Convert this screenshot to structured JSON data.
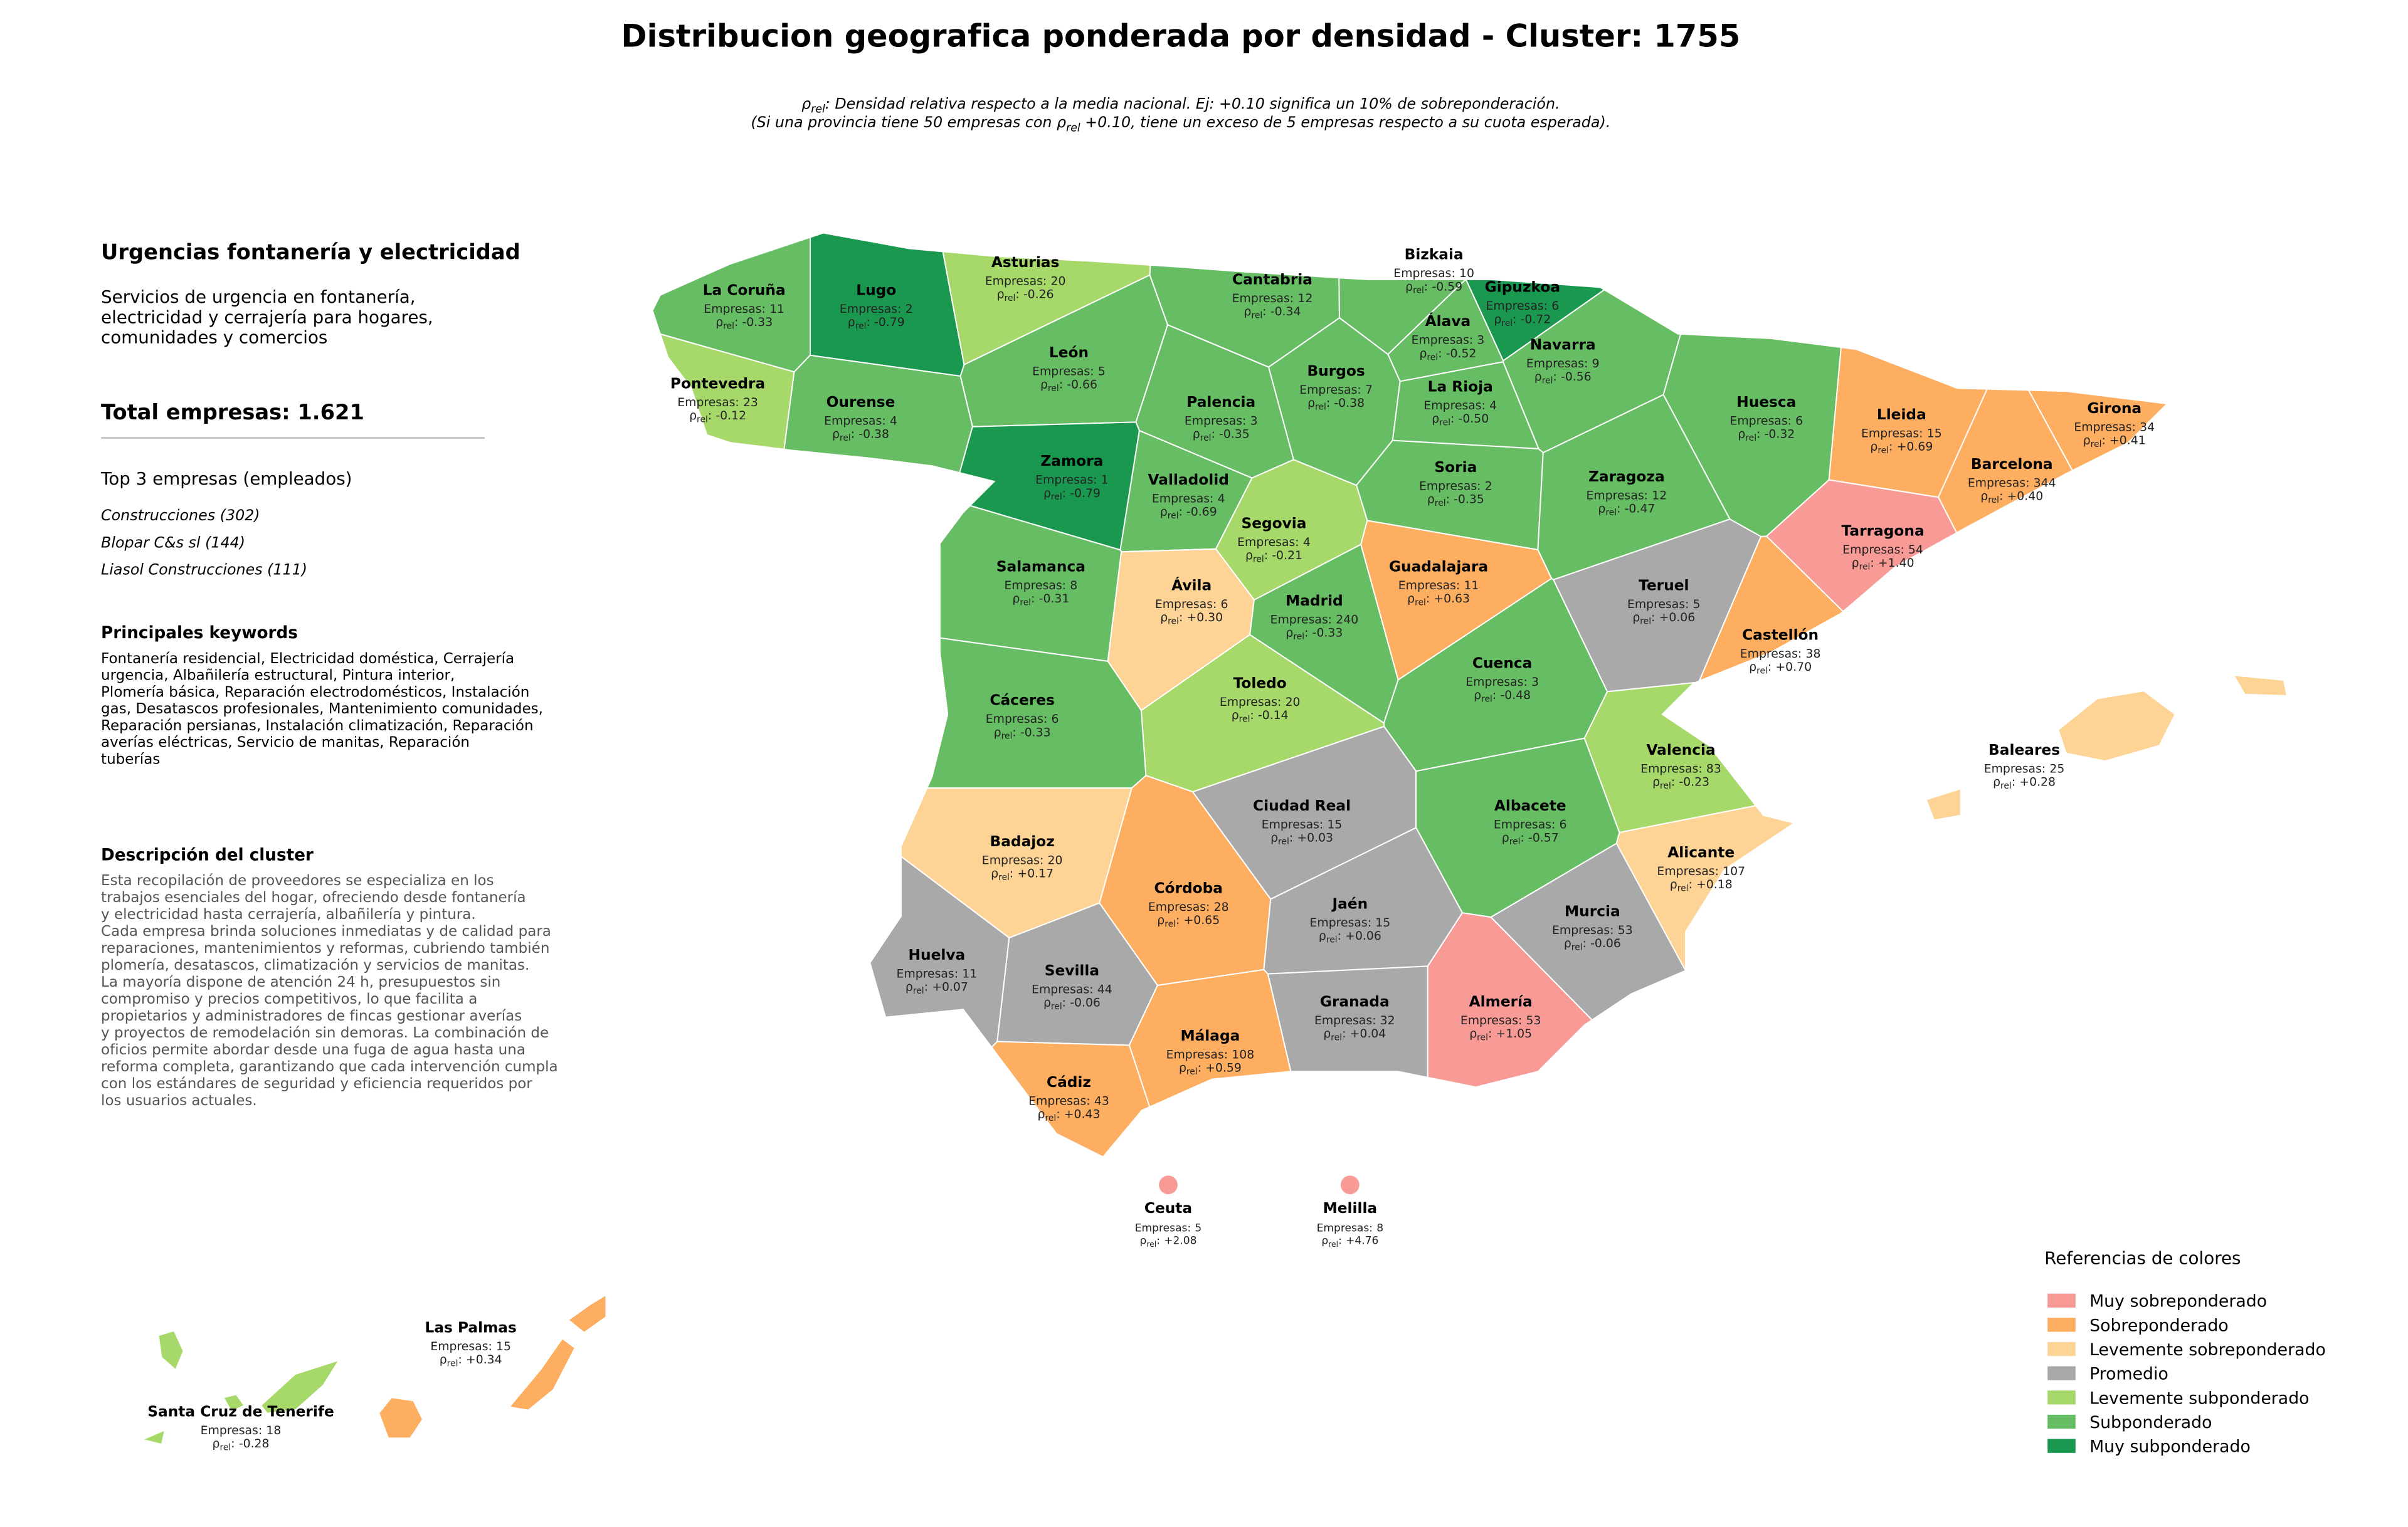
{
  "header": {
    "title": "Distribucion geografica ponderada por densidad - Cluster: 1755",
    "subtitle": [
      {
        "pre": "ρ",
        "sub": "rel",
        "post": ": Densidad relativa respecto a la media nacional. Ej: +0.10 significa un 10% de sobreponderación."
      },
      {
        "pre": "(Si una provincia tiene 50 empresas con ρ",
        "sub": "rel",
        "post": " +0.10, tiene un exceso de 5 empresas respecto a su cuota esperada)."
      }
    ]
  },
  "panel": {
    "title": "Urgencias fontanería y electricidad",
    "description": [
      "Servicios de urgencia en fontanería,",
      "electricidad y cerrajería para hogares,",
      "comunidades y comercios"
    ],
    "total": "Total empresas: 1.621",
    "top_title": "Top 3 empresas (empleados)",
    "top": [
      "Construcciones (302)",
      "Blopar C&s sl (144)",
      "Liasol Construcciones (111)"
    ],
    "keywords_title": "Principales keywords",
    "keywords": [
      "Fontanería residencial, Electricidad doméstica, Cerrajería",
      "urgencia, Albañilería estructural, Pintura interior,",
      "Plomería básica, Reparación electrodomésticos, Instalación",
      "gas, Desatascos profesionales, Mantenimiento comunidades,",
      "Reparación persianas, Instalación climatización, Reparación",
      "averías eléctricas, Servicio de manitas, Reparación",
      "tuberías"
    ],
    "cluster_title": "Descripción del cluster",
    "cluster": [
      "Esta recopilación de proveedores se especializa en los",
      "trabajos esenciales del hogar, ofreciendo desde fontanería",
      "y electricidad hasta cerrajería, albañilería y pintura.",
      "Cada empresa brinda soluciones inmediatas y de calidad para",
      "reparaciones, mantenimientos y reformas, cubriendo también",
      "plomería, desatascos, climatización y servicios de manitas.",
      "La mayoría dispone de atención 24 h, presupuestos sin",
      "compromiso y precios competitivos, lo que facilita a",
      "propietarios y administradores de fincas gestionar averías",
      "y proyectos de remodelación sin demoras. La combinación de",
      "oficios permite abordar desde una fuga de agua hasta una",
      "reforma completa, garantizando que cada intervención cumpla",
      "con los estándares de seguridad y eficiencia requeridos por",
      "los usuarios actuales."
    ]
  },
  "labels": {
    "empresas": "Empresas:",
    "rho": "ρ",
    "rho_sub": "rel",
    "rho_colon": ":"
  },
  "provinces": [
    {
      "name": "La Coruña",
      "empresas": 11,
      "rho": -0.33,
      "rho_label": "-0.33",
      "color": "#66bd63"
    },
    {
      "name": "Lugo",
      "empresas": 2,
      "rho": -0.79,
      "rho_label": "-0.79",
      "color": "#1a9850"
    },
    {
      "name": "Asturias",
      "empresas": 20,
      "rho": -0.26,
      "rho_label": "-0.26",
      "color": "#a6d96a"
    },
    {
      "name": "Cantabria",
      "empresas": 12,
      "rho": -0.34,
      "rho_label": "-0.34",
      "color": "#66bd63"
    },
    {
      "name": "Bizkaia",
      "empresas": 10,
      "rho": -0.59,
      "rho_label": "-0.59",
      "color": "#66bd63"
    },
    {
      "name": "Gipuzkoa",
      "empresas": 6,
      "rho": -0.72,
      "rho_label": "-0.72",
      "color": "#1a9850"
    },
    {
      "name": "Álava",
      "empresas": 3,
      "rho": -0.52,
      "rho_label": "-0.52",
      "color": "#66bd63"
    },
    {
      "name": "Navarra",
      "empresas": 9,
      "rho": -0.56,
      "rho_label": "-0.56",
      "color": "#66bd63"
    },
    {
      "name": "León",
      "empresas": 5,
      "rho": -0.66,
      "rho_label": "-0.66",
      "color": "#66bd63"
    },
    {
      "name": "Pontevedra",
      "empresas": 23,
      "rho": -0.12,
      "rho_label": "-0.12",
      "color": "#a6d96a"
    },
    {
      "name": "Ourense",
      "empresas": 4,
      "rho": -0.38,
      "rho_label": "-0.38",
      "color": "#66bd63"
    },
    {
      "name": "Palencia",
      "empresas": 3,
      "rho": -0.35,
      "rho_label": "-0.35",
      "color": "#66bd63"
    },
    {
      "name": "Burgos",
      "empresas": 7,
      "rho": -0.38,
      "rho_label": "-0.38",
      "color": "#66bd63"
    },
    {
      "name": "La Rioja",
      "empresas": 4,
      "rho": -0.5,
      "rho_label": "-0.50",
      "color": "#66bd63"
    },
    {
      "name": "Huesca",
      "empresas": 6,
      "rho": -0.32,
      "rho_label": "-0.32",
      "color": "#66bd63"
    },
    {
      "name": "Lleida",
      "empresas": 15,
      "rho": 0.69,
      "rho_label": "+0.69",
      "color": "#fdae61"
    },
    {
      "name": "Girona",
      "empresas": 34,
      "rho": 0.41,
      "rho_label": "+0.41",
      "color": "#fdae61"
    },
    {
      "name": "Barcelona",
      "empresas": 344,
      "rho": 0.4,
      "rho_label": "+0.40",
      "color": "#fdae61"
    },
    {
      "name": "Zamora",
      "empresas": 1,
      "rho": -0.79,
      "rho_label": "-0.79",
      "color": "#1a9850"
    },
    {
      "name": "Valladolid",
      "empresas": 4,
      "rho": -0.69,
      "rho_label": "-0.69",
      "color": "#66bd63"
    },
    {
      "name": "Soria",
      "empresas": 2,
      "rho": -0.35,
      "rho_label": "-0.35",
      "color": "#66bd63"
    },
    {
      "name": "Zaragoza",
      "empresas": 12,
      "rho": -0.47,
      "rho_label": "-0.47",
      "color": "#66bd63"
    },
    {
      "name": "Tarragona",
      "empresas": 54,
      "rho": 1.4,
      "rho_label": "+1.40",
      "color": "#f89b96"
    },
    {
      "name": "Segovia",
      "empresas": 4,
      "rho": -0.21,
      "rho_label": "-0.21",
      "color": "#a6d96a"
    },
    {
      "name": "Salamanca",
      "empresas": 8,
      "rho": -0.31,
      "rho_label": "-0.31",
      "color": "#66bd63"
    },
    {
      "name": "Ávila",
      "empresas": 6,
      "rho": 0.3,
      "rho_label": "+0.30",
      "color": "#fdd495"
    },
    {
      "name": "Madrid",
      "empresas": 240,
      "rho": -0.33,
      "rho_label": "-0.33",
      "color": "#66bd63"
    },
    {
      "name": "Guadalajara",
      "empresas": 11,
      "rho": 0.63,
      "rho_label": "+0.63",
      "color": "#fdae61"
    },
    {
      "name": "Teruel",
      "empresas": 5,
      "rho": 0.06,
      "rho_label": "+0.06",
      "color": "#a9a9a9"
    },
    {
      "name": "Castellón",
      "empresas": 38,
      "rho": 0.7,
      "rho_label": "+0.70",
      "color": "#fdae61"
    },
    {
      "name": "Cuenca",
      "empresas": 3,
      "rho": -0.48,
      "rho_label": "-0.48",
      "color": "#66bd63"
    },
    {
      "name": "Toledo",
      "empresas": 20,
      "rho": -0.14,
      "rho_label": "-0.14",
      "color": "#a6d96a"
    },
    {
      "name": "Cáceres",
      "empresas": 6,
      "rho": -0.33,
      "rho_label": "-0.33",
      "color": "#66bd63"
    },
    {
      "name": "Valencia",
      "empresas": 83,
      "rho": -0.23,
      "rho_label": "-0.23",
      "color": "#a6d96a"
    },
    {
      "name": "Baleares",
      "empresas": 25,
      "rho": 0.28,
      "rho_label": "+0.28",
      "color": "#fdd495"
    },
    {
      "name": "Ciudad Real",
      "empresas": 15,
      "rho": 0.03,
      "rho_label": "+0.03",
      "color": "#a9a9a9"
    },
    {
      "name": "Albacete",
      "empresas": 6,
      "rho": -0.57,
      "rho_label": "-0.57",
      "color": "#66bd63"
    },
    {
      "name": "Badajoz",
      "empresas": 20,
      "rho": 0.17,
      "rho_label": "+0.17",
      "color": "#fdd495"
    },
    {
      "name": "Alicante",
      "empresas": 107,
      "rho": 0.18,
      "rho_label": "+0.18",
      "color": "#fdd495"
    },
    {
      "name": "Córdoba",
      "empresas": 28,
      "rho": 0.65,
      "rho_label": "+0.65",
      "color": "#fdae61"
    },
    {
      "name": "Jaén",
      "empresas": 15,
      "rho": 0.06,
      "rho_label": "+0.06",
      "color": "#a9a9a9"
    },
    {
      "name": "Murcia",
      "empresas": 53,
      "rho": -0.06,
      "rho_label": "-0.06",
      "color": "#a9a9a9"
    },
    {
      "name": "Huelva",
      "empresas": 11,
      "rho": 0.07,
      "rho_label": "+0.07",
      "color": "#a9a9a9"
    },
    {
      "name": "Sevilla",
      "empresas": 44,
      "rho": -0.06,
      "rho_label": "-0.06",
      "color": "#a9a9a9"
    },
    {
      "name": "Granada",
      "empresas": 32,
      "rho": 0.04,
      "rho_label": "+0.04",
      "color": "#a9a9a9"
    },
    {
      "name": "Almería",
      "empresas": 53,
      "rho": 1.05,
      "rho_label": "+1.05",
      "color": "#f89b96"
    },
    {
      "name": "Málaga",
      "empresas": 108,
      "rho": 0.59,
      "rho_label": "+0.59",
      "color": "#fdae61"
    },
    {
      "name": "Cádiz",
      "empresas": 43,
      "rho": 0.43,
      "rho_label": "+0.43",
      "color": "#fdae61"
    },
    {
      "name": "Ceuta",
      "empresas": 5,
      "rho": 2.08,
      "rho_label": "+2.08",
      "color": "#f89b96"
    },
    {
      "name": "Melilla",
      "empresas": 8,
      "rho": 4.76,
      "rho_label": "+4.76",
      "color": "#f89b96"
    },
    {
      "name": "Las Palmas",
      "empresas": 15,
      "rho": 0.34,
      "rho_label": "+0.34",
      "color": "#fdae61"
    },
    {
      "name": "Santa Cruz de Tenerife",
      "empresas": 18,
      "rho": -0.28,
      "rho_label": "-0.28",
      "color": "#a6d96a"
    }
  ],
  "legend": {
    "title": "Referencias de colores",
    "items": [
      {
        "name": "Muy sobreponderado",
        "color": "#f89b96"
      },
      {
        "name": "Sobreponderado",
        "color": "#fdae61"
      },
      {
        "name": "Levemente sobreponderado",
        "color": "#fdd495"
      },
      {
        "name": "Promedio",
        "color": "#a9a9a9"
      },
      {
        "name": "Levemente subponderado",
        "color": "#a6d96a"
      },
      {
        "name": "Subponderado",
        "color": "#66bd63"
      },
      {
        "name": "Muy subponderado",
        "color": "#1a9850"
      }
    ]
  }
}
